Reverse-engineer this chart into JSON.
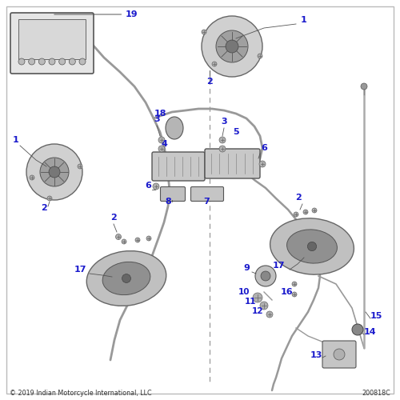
{
  "bg_color": "#ffffff",
  "border_color": "#bbbbbb",
  "label_color": "#1a1acc",
  "line_color": "#999999",
  "part_color": "#b8b8b8",
  "dark_color": "#777777",
  "copyright": "© 2019 Indian Motorcycle International, LLC",
  "part_number": "200818C",
  "figsize": [
    5.0,
    5.0
  ],
  "dpi": 100
}
